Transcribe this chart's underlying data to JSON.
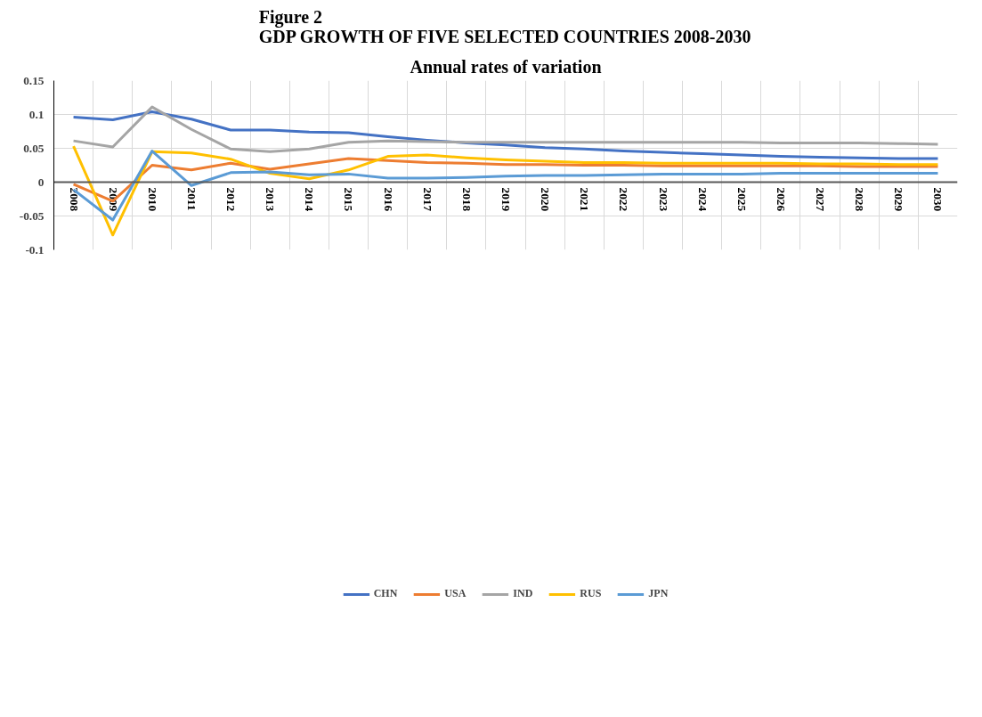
{
  "chart_data": {
    "type": "line",
    "title": "Figure 2\nGDP GROWTH OF FIVE SELECTED COUNTRIES 2008-2030",
    "subtitle": "Annual rates of variation",
    "categories": [
      "2008",
      "2009",
      "2010",
      "2011",
      "2012",
      "2013",
      "2014",
      "2015",
      "2016",
      "2017",
      "2018",
      "2019",
      "2020",
      "2021",
      "2022",
      "2023",
      "2024",
      "2025",
      "2026",
      "2027",
      "2028",
      "2029",
      "2030"
    ],
    "ylim": [
      -0.1,
      0.15
    ],
    "yticks": [
      {
        "value": -0.1,
        "label": "-0.1"
      },
      {
        "value": -0.05,
        "label": "-0.05"
      },
      0,
      {
        "value": 0.05,
        "label": "0.05"
      },
      {
        "value": 0.1,
        "label": "0.1"
      },
      {
        "value": 0.15,
        "label": "0.15"
      }
    ],
    "grid": true,
    "legend": "bottom",
    "marker": "none",
    "line_style": "solid",
    "series": [
      {
        "name": "CHN",
        "color": "#4472c4",
        "values": [
          0.096,
          0.092,
          0.104,
          0.093,
          0.077,
          0.077,
          0.074,
          0.073,
          0.067,
          0.062,
          0.058,
          0.055,
          0.051,
          0.049,
          0.046,
          0.044,
          0.042,
          0.04,
          0.038,
          0.037,
          0.036,
          0.035,
          0.035
        ]
      },
      {
        "name": "USA",
        "color": "#ed7d31",
        "values": [
          -0.003,
          -0.028,
          0.025,
          0.018,
          0.028,
          0.019,
          0.027,
          0.035,
          0.032,
          0.029,
          0.028,
          0.026,
          0.026,
          0.025,
          0.025,
          0.024,
          0.024,
          0.024,
          0.024,
          0.024,
          0.023,
          0.023,
          0.023
        ]
      },
      {
        "name": "IND",
        "color": "#a5a5a5",
        "values": [
          0.061,
          0.052,
          0.111,
          0.078,
          0.049,
          0.045,
          0.049,
          0.059,
          0.061,
          0.06,
          0.059,
          0.059,
          0.059,
          0.059,
          0.059,
          0.059,
          0.059,
          0.059,
          0.058,
          0.058,
          0.058,
          0.057,
          0.056
        ]
      },
      {
        "name": "RUS",
        "color": "#ffc000",
        "values": [
          0.053,
          -0.078,
          0.045,
          0.043,
          0.034,
          0.013,
          0.005,
          0.018,
          0.038,
          0.04,
          0.036,
          0.033,
          0.031,
          0.029,
          0.029,
          0.028,
          0.028,
          0.028,
          0.028,
          0.027,
          0.027,
          0.026,
          0.026
        ]
      },
      {
        "name": "JPN",
        "color": "#5b9bd5",
        "values": [
          -0.011,
          -0.056,
          0.046,
          -0.005,
          0.014,
          0.015,
          0.011,
          0.012,
          0.006,
          0.006,
          0.007,
          0.009,
          0.01,
          0.01,
          0.011,
          0.012,
          0.012,
          0.012,
          0.013,
          0.013,
          0.013,
          0.013,
          0.013
        ]
      }
    ]
  }
}
